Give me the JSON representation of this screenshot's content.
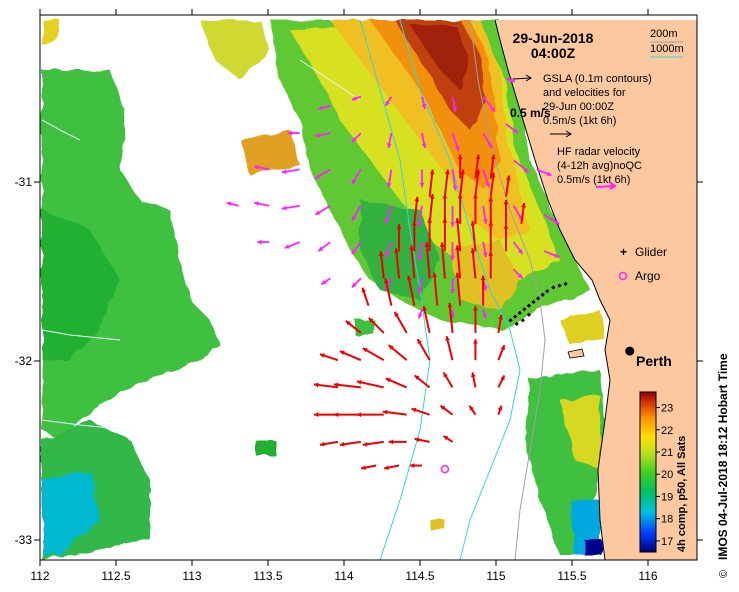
{
  "header": {
    "date": "29-Jun-2018",
    "time": "04:00Z"
  },
  "bathymetry_legend": {
    "contour_200": "200m",
    "contour_1000": "1000m",
    "color_200": "#a0a0a0",
    "color_1000": "#30d8d8"
  },
  "velocity_legend": {
    "gsla_line1": "GSLA (0.1m contours)",
    "gsla_line2": "and velocities for",
    "gsla_line3": "29-Jun 00:00Z",
    "gsla_speed_big": "0.5 m/s",
    "gsla_scale": "0.5m/s (1kt 6h)",
    "hf_line1": "HF radar velocity",
    "hf_line2": "(4-12h avg)noQC",
    "hf_scale": "0.5m/s (1kt 6h)"
  },
  "markers": {
    "glider": "Glider",
    "argo": "Argo",
    "city": "Perth"
  },
  "axes": {
    "x_ticks": [
      "112",
      "112.5",
      "113",
      "113.5",
      "114",
      "114.5",
      "115",
      "115.5",
      "116"
    ],
    "y_ticks": [
      "-31",
      "-32",
      "-33"
    ]
  },
  "colorbar": {
    "title": "4h comp, p50, All Sats",
    "labels": [
      "23",
      "22",
      "21",
      "20",
      "19",
      "18",
      "17"
    ],
    "range": [
      16.5,
      23.7
    ]
  },
  "credit": "IMOS 04-Jul-2018 18:12 Hobart Time",
  "copyright": "©",
  "colors": {
    "land": "#fcc8a0",
    "gsla_arrow": "#ff20ff",
    "hf_arrow": "#ee0000",
    "glider": "#ff20ff",
    "argo": "#ff20ff"
  },
  "chart_data": {
    "type": "map",
    "xlim": [
      112,
      116.3
    ],
    "ylim": [
      -33.1,
      -30.1
    ],
    "city": {
      "name": "Perth",
      "lon": 115.86,
      "lat": -31.95
    },
    "argo": {
      "lon": 114.65,
      "lat": -32.6
    },
    "glider_track": [
      [
        115.08,
        -31.78
      ],
      [
        115.11,
        -31.76
      ],
      [
        115.14,
        -31.74
      ],
      [
        115.17,
        -31.72
      ],
      [
        115.2,
        -31.7
      ],
      [
        115.23,
        -31.68
      ],
      [
        115.26,
        -31.66
      ],
      [
        115.29,
        -31.64
      ],
      [
        115.32,
        -31.62
      ],
      [
        115.36,
        -31.6
      ],
      [
        115.4,
        -31.59
      ],
      [
        115.44,
        -31.58
      ],
      [
        115.12,
        -31.8
      ],
      [
        115.16,
        -31.78
      ],
      [
        115.2,
        -31.75
      ]
    ],
    "gsla_arrows": [
      [
        114.9,
        -30.55,
        0.08,
        -0.1
      ],
      [
        114.7,
        -30.55,
        0.02,
        -0.1
      ],
      [
        114.5,
        -30.55,
        0.02,
        -0.08
      ],
      [
        114.3,
        -30.55,
        -0.04,
        -0.06
      ],
      [
        114.1,
        -30.55,
        -0.06,
        -0.02
      ],
      [
        113.9,
        -30.6,
        -0.08,
        -0.02
      ],
      [
        115.05,
        -30.45,
        0.06,
        -0.02
      ],
      [
        114.9,
        -30.75,
        0.06,
        -0.1
      ],
      [
        114.7,
        -30.75,
        0.04,
        -0.12
      ],
      [
        114.5,
        -30.75,
        0.02,
        -0.1
      ],
      [
        114.3,
        -30.75,
        -0.02,
        -0.1
      ],
      [
        114.1,
        -30.75,
        -0.06,
        -0.06
      ],
      [
        113.9,
        -30.75,
        -0.1,
        -0.02
      ],
      [
        113.7,
        -30.75,
        -0.08,
        0.0
      ],
      [
        115.05,
        -30.7,
        0.08,
        -0.06
      ],
      [
        114.9,
        -30.95,
        0.04,
        -0.12
      ],
      [
        114.7,
        -30.95,
        0.02,
        -0.14
      ],
      [
        114.5,
        -30.95,
        0.0,
        -0.12
      ],
      [
        114.3,
        -30.95,
        -0.02,
        -0.12
      ],
      [
        114.1,
        -30.95,
        -0.06,
        -0.1
      ],
      [
        113.9,
        -30.95,
        -0.1,
        -0.06
      ],
      [
        113.7,
        -30.95,
        -0.12,
        -0.02
      ],
      [
        113.5,
        -30.95,
        -0.1,
        0.02
      ],
      [
        115.1,
        -30.9,
        0.1,
        -0.08
      ],
      [
        115.25,
        -30.95,
        0.1,
        -0.04
      ],
      [
        114.9,
        -31.15,
        0.02,
        -0.12
      ],
      [
        114.7,
        -31.15,
        0.0,
        -0.14
      ],
      [
        114.5,
        -31.15,
        -0.02,
        -0.14
      ],
      [
        114.3,
        -31.15,
        -0.04,
        -0.12
      ],
      [
        114.1,
        -31.15,
        -0.06,
        -0.1
      ],
      [
        113.9,
        -31.15,
        -0.1,
        -0.06
      ],
      [
        113.7,
        -31.15,
        -0.12,
        -0.02
      ],
      [
        113.5,
        -31.15,
        -0.1,
        0.02
      ],
      [
        113.3,
        -31.15,
        -0.08,
        0.02
      ],
      [
        115.1,
        -31.15,
        0.06,
        -0.1
      ],
      [
        115.3,
        -31.2,
        0.1,
        -0.06
      ],
      [
        114.9,
        -31.35,
        0.02,
        -0.1
      ],
      [
        114.7,
        -31.35,
        0.0,
        -0.12
      ],
      [
        114.5,
        -31.35,
        -0.02,
        -0.12
      ],
      [
        114.3,
        -31.35,
        -0.04,
        -0.1
      ],
      [
        114.1,
        -31.35,
        -0.06,
        -0.08
      ],
      [
        113.9,
        -31.35,
        -0.08,
        -0.06
      ],
      [
        113.7,
        -31.35,
        -0.1,
        -0.04
      ],
      [
        113.5,
        -31.35,
        -0.08,
        0.0
      ],
      [
        115.1,
        -31.35,
        0.06,
        -0.08
      ],
      [
        115.3,
        -31.4,
        0.1,
        -0.04
      ],
      [
        114.9,
        -31.55,
        0.02,
        -0.08
      ],
      [
        114.7,
        -31.55,
        0.0,
        -0.1
      ],
      [
        114.5,
        -31.55,
        -0.02,
        -0.1
      ],
      [
        114.3,
        -31.55,
        -0.04,
        -0.08
      ],
      [
        114.1,
        -31.55,
        -0.06,
        -0.06
      ],
      [
        113.9,
        -31.55,
        -0.06,
        -0.04
      ],
      [
        115.1,
        -31.5,
        0.06,
        -0.06
      ],
      [
        114.9,
        -31.72,
        0.02,
        -0.06
      ],
      [
        114.7,
        -31.72,
        0.0,
        -0.06
      ],
      [
        114.5,
        -31.72,
        -0.02,
        -0.06
      ]
    ],
    "hf_arrows": [
      [
        114.75,
        -31.0,
        0.0,
        0.16
      ],
      [
        114.85,
        -31.0,
        0.02,
        0.16
      ],
      [
        114.95,
        -31.0,
        0.02,
        0.16
      ],
      [
        114.55,
        -31.1,
        0.02,
        0.18
      ],
      [
        114.65,
        -31.1,
        0.02,
        0.18
      ],
      [
        114.75,
        -31.1,
        0.02,
        0.18
      ],
      [
        114.85,
        -31.1,
        0.02,
        0.18
      ],
      [
        114.95,
        -31.1,
        0.02,
        0.16
      ],
      [
        115.05,
        -31.1,
        0.02,
        0.14
      ],
      [
        114.45,
        -31.25,
        0.02,
        0.18
      ],
      [
        114.55,
        -31.25,
        0.02,
        0.2
      ],
      [
        114.65,
        -31.25,
        0.0,
        0.2
      ],
      [
        114.75,
        -31.25,
        0.0,
        0.2
      ],
      [
        114.85,
        -31.25,
        0.0,
        0.2
      ],
      [
        114.95,
        -31.25,
        0.0,
        0.18
      ],
      [
        115.05,
        -31.25,
        0.0,
        0.16
      ],
      [
        115.15,
        -31.25,
        0.02,
        0.14
      ],
      [
        114.35,
        -31.4,
        0.0,
        0.18
      ],
      [
        114.45,
        -31.4,
        0.0,
        0.2
      ],
      [
        114.55,
        -31.4,
        0.0,
        0.22
      ],
      [
        114.65,
        -31.4,
        0.0,
        0.22
      ],
      [
        114.75,
        -31.4,
        -0.02,
        0.22
      ],
      [
        114.85,
        -31.4,
        -0.02,
        0.2
      ],
      [
        114.95,
        -31.4,
        0.0,
        0.2
      ],
      [
        115.05,
        -31.4,
        0.0,
        0.18
      ],
      [
        114.25,
        -31.55,
        -0.02,
        0.18
      ],
      [
        114.35,
        -31.55,
        -0.02,
        0.2
      ],
      [
        114.45,
        -31.55,
        -0.02,
        0.22
      ],
      [
        114.55,
        -31.55,
        -0.02,
        0.24
      ],
      [
        114.65,
        -31.55,
        -0.02,
        0.24
      ],
      [
        114.75,
        -31.55,
        -0.02,
        0.22
      ],
      [
        114.85,
        -31.55,
        -0.02,
        0.2
      ],
      [
        114.95,
        -31.55,
        0.0,
        0.18
      ],
      [
        114.15,
        -31.7,
        -0.04,
        0.12
      ],
      [
        114.3,
        -31.7,
        -0.04,
        0.18
      ],
      [
        114.45,
        -31.7,
        -0.04,
        0.2
      ],
      [
        114.6,
        -31.7,
        -0.02,
        0.22
      ],
      [
        114.75,
        -31.7,
        -0.02,
        0.22
      ],
      [
        114.9,
        -31.7,
        0.0,
        0.2
      ],
      [
        114.1,
        -31.85,
        -0.1,
        0.08
      ],
      [
        114.25,
        -31.85,
        -0.1,
        0.1
      ],
      [
        114.4,
        -31.85,
        -0.08,
        0.14
      ],
      [
        114.55,
        -31.85,
        -0.04,
        0.18
      ],
      [
        114.7,
        -31.85,
        -0.02,
        0.2
      ],
      [
        114.85,
        -31.85,
        0.0,
        0.18
      ],
      [
        115.0,
        -31.85,
        0.02,
        0.12
      ],
      [
        113.95,
        -32.0,
        -0.12,
        0.04
      ],
      [
        114.1,
        -32.0,
        -0.14,
        0.06
      ],
      [
        114.25,
        -32.0,
        -0.14,
        0.08
      ],
      [
        114.4,
        -32.0,
        -0.12,
        0.1
      ],
      [
        114.55,
        -32.0,
        -0.08,
        0.14
      ],
      [
        114.7,
        -32.0,
        -0.04,
        0.16
      ],
      [
        114.85,
        -32.0,
        0.0,
        0.14
      ],
      [
        115.0,
        -32.0,
        0.04,
        0.1
      ],
      [
        113.95,
        -32.15,
        -0.16,
        0.02
      ],
      [
        114.1,
        -32.15,
        -0.18,
        0.02
      ],
      [
        114.25,
        -32.15,
        -0.18,
        0.04
      ],
      [
        114.4,
        -32.15,
        -0.14,
        0.06
      ],
      [
        114.55,
        -32.15,
        -0.1,
        0.08
      ],
      [
        114.7,
        -32.15,
        -0.06,
        0.1
      ],
      [
        114.85,
        -32.15,
        -0.02,
        0.1
      ],
      [
        115.0,
        -32.15,
        0.04,
        0.08
      ],
      [
        113.95,
        -32.3,
        -0.16,
        0.0
      ],
      [
        114.1,
        -32.3,
        -0.18,
        0.0
      ],
      [
        114.25,
        -32.3,
        -0.18,
        0.0
      ],
      [
        114.4,
        -32.3,
        -0.16,
        0.02
      ],
      [
        114.55,
        -32.3,
        -0.12,
        0.04
      ],
      [
        114.7,
        -32.3,
        -0.08,
        0.06
      ],
      [
        114.85,
        -32.3,
        -0.04,
        0.06
      ],
      [
        115.0,
        -32.3,
        0.02,
        0.06
      ],
      [
        113.95,
        -32.45,
        -0.12,
        -0.02
      ],
      [
        114.1,
        -32.45,
        -0.14,
        -0.02
      ],
      [
        114.25,
        -32.45,
        -0.14,
        -0.02
      ],
      [
        114.4,
        -32.45,
        -0.12,
        0.0
      ],
      [
        114.55,
        -32.45,
        -0.1,
        0.02
      ],
      [
        114.7,
        -32.45,
        -0.06,
        0.04
      ],
      [
        114.2,
        -32.58,
        -0.1,
        -0.02
      ],
      [
        114.35,
        -32.58,
        -0.1,
        -0.02
      ],
      [
        114.5,
        -32.58,
        -0.08,
        0.0
      ]
    ],
    "sst_colorbar": {
      "min": 16.5,
      "max": 23.7,
      "ticks": [
        23,
        22,
        21,
        20,
        19,
        18,
        17
      ]
    }
  }
}
